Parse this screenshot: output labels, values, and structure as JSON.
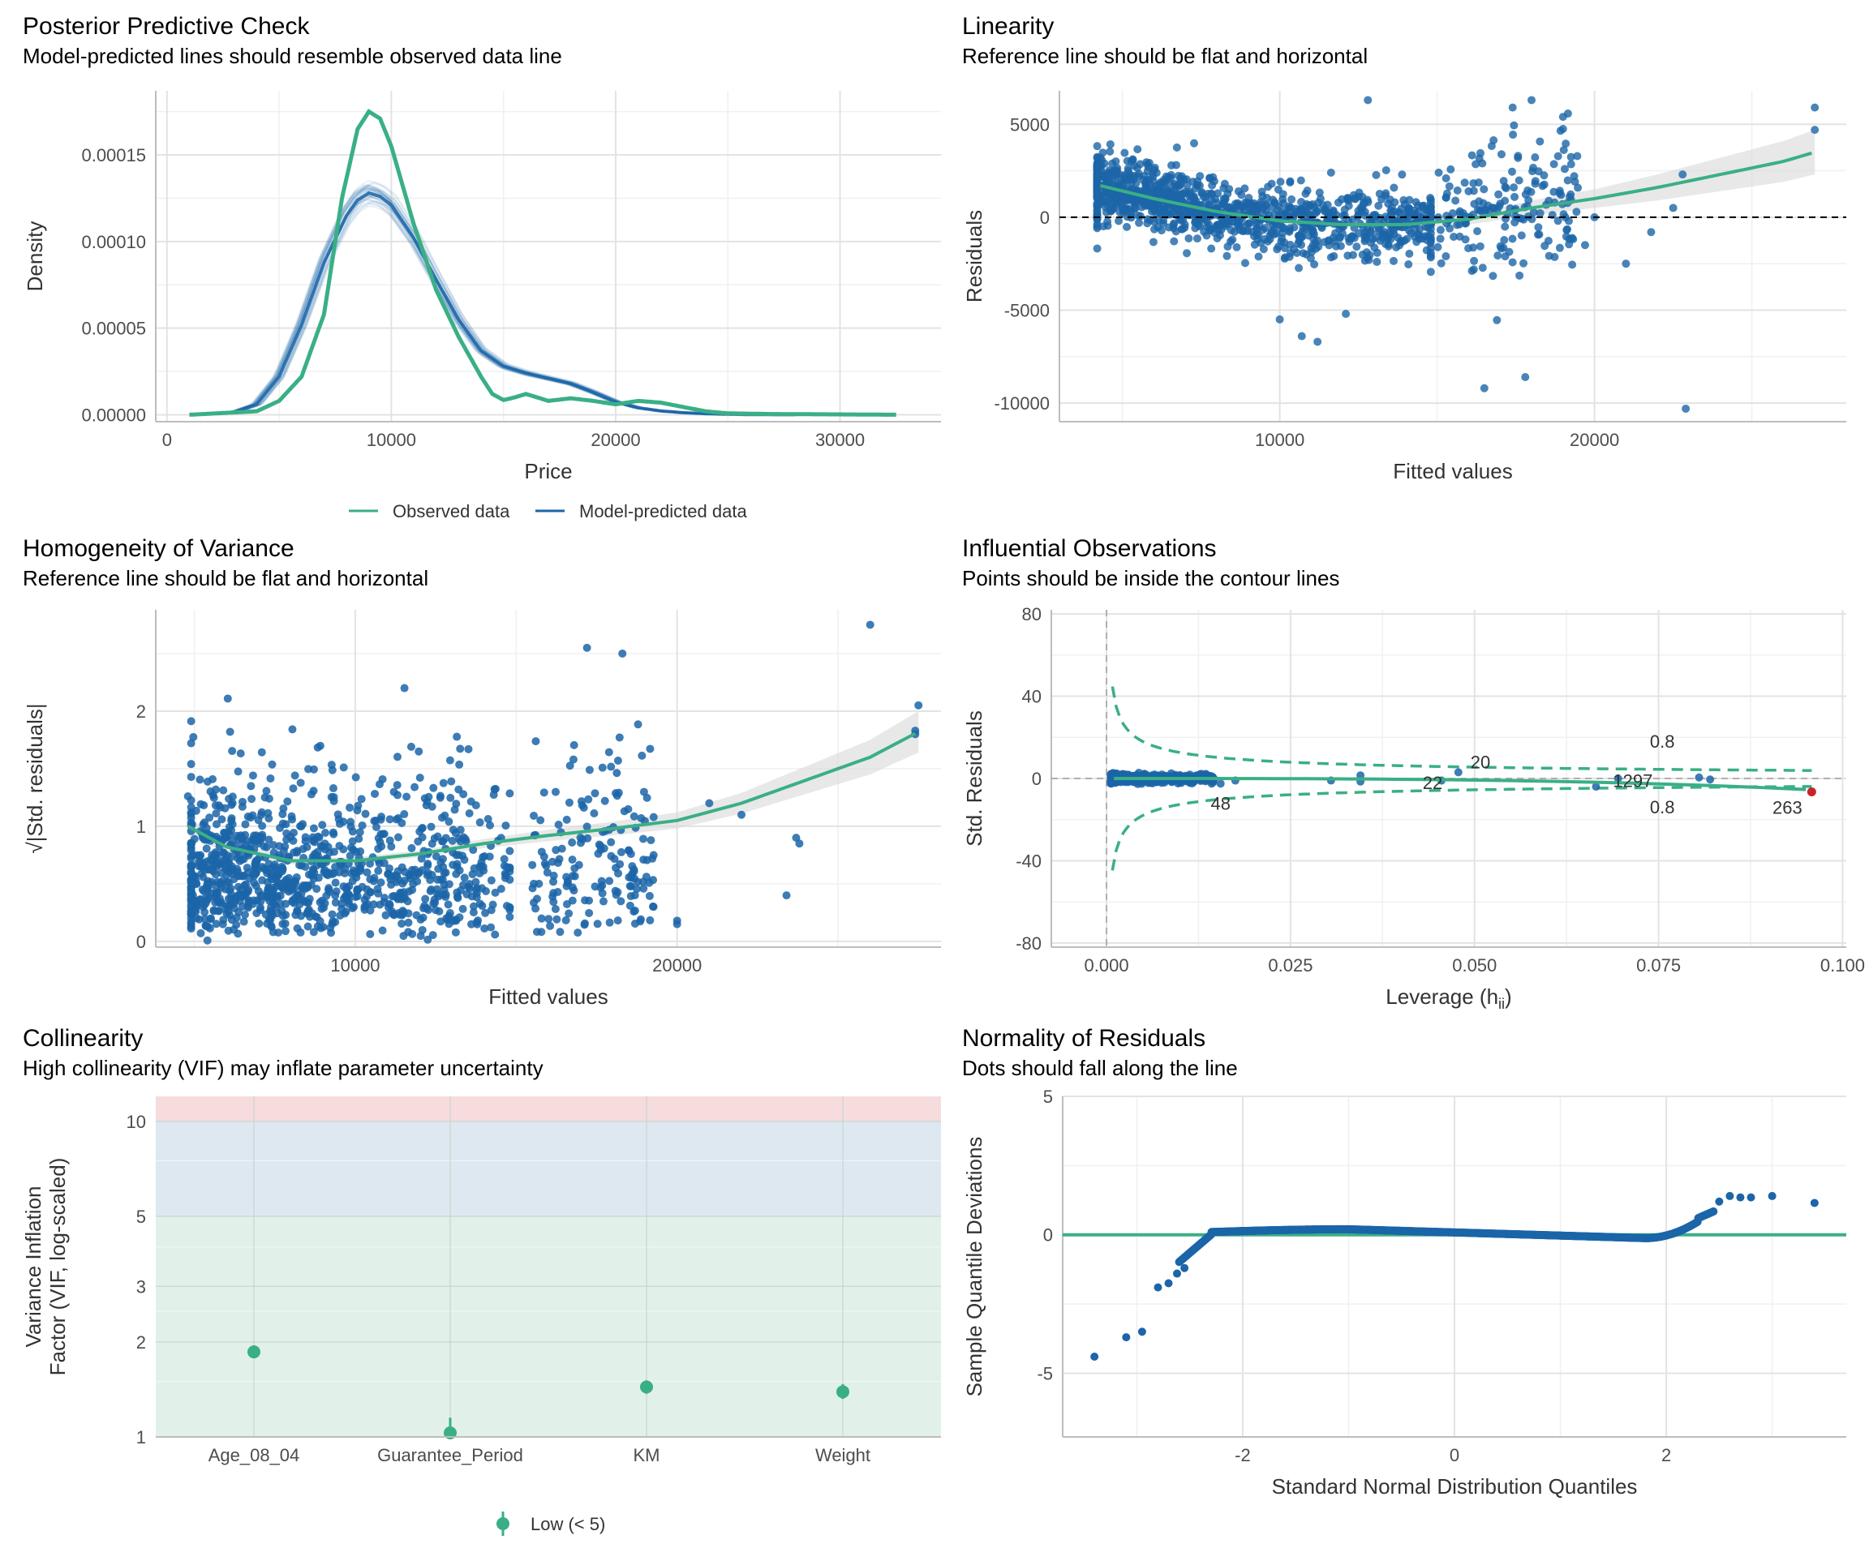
{
  "colors": {
    "blue": "#1b65a8",
    "green": "#3aaf85",
    "grid": "#e3e3e3",
    "red": "#c8242b",
    "band_ci": "#d9d9d9"
  },
  "chart_data": [
    {
      "id": "ppc",
      "type": "line",
      "title": "Posterior Predictive Check",
      "subtitle": "Model-predicted lines should resemble observed data line",
      "xlabel": "Price",
      "ylabel": "Density",
      "xlim": [
        -500,
        34500
      ],
      "ylim": [
        -4e-06,
        0.000187
      ],
      "x_ticks": [
        0,
        10000,
        20000,
        30000
      ],
      "x_tick_labels": [
        "0",
        "10000",
        "20000",
        "30000"
      ],
      "y_ticks": [
        0,
        5e-05,
        0.0001,
        0.00015
      ],
      "y_tick_labels": [
        "0.00000",
        "0.00005",
        "0.00010",
        "0.00015"
      ],
      "legend": {
        "position": "bottom",
        "entries": [
          "Observed data",
          "Model-predicted data"
        ]
      },
      "series": [
        {
          "name": "Observed data",
          "color": "#3aaf85",
          "x": [
            1000,
            4000,
            5000,
            6000,
            7000,
            7800,
            8500,
            9000,
            9500,
            10000,
            11000,
            12000,
            13000,
            14000,
            14500,
            15000,
            15500,
            16000,
            17000,
            18000,
            19000,
            20000,
            21000,
            22000,
            23000,
            24000,
            25000,
            27000,
            30000,
            32500
          ],
          "y": [
            0,
            2e-06,
            8e-06,
            2.2e-05,
            5.8e-05,
            0.000125,
            0.000165,
            0.000175,
            0.000171,
            0.000155,
            0.00011,
            7.2e-05,
            4.5e-05,
            2.2e-05,
            1.2e-05,
            8.5e-06,
            1e-05,
            1.2e-05,
            8e-06,
            9.5e-06,
            8e-06,
            6e-06,
            8e-06,
            7e-06,
            4.5e-06,
            2e-06,
            8e-07,
            4e-07,
            2e-07,
            0
          ]
        },
        {
          "name": "Model-predicted data",
          "color": "#1b65a8",
          "x": [
            1000,
            3000,
            4000,
            5000,
            6000,
            7000,
            8000,
            8500,
            9000,
            9500,
            10000,
            11000,
            12000,
            13000,
            14000,
            15000,
            16000,
            17000,
            18000,
            19000,
            20000,
            21000,
            22000,
            23000,
            24000,
            25000,
            26000,
            28000
          ],
          "y": [
            0,
            1.5e-06,
            6e-06,
            2.2e-05,
            5.2e-05,
            8.8e-05,
            0.000115,
            0.000124,
            0.000128,
            0.000126,
            0.000121,
            0.000102,
            7.8e-05,
            5.5e-05,
            3.7e-05,
            2.8e-05,
            2.4e-05,
            2.1e-05,
            1.8e-05,
            1.3e-05,
            7.5e-06,
            4e-06,
            2.2e-06,
            1.2e-06,
            6e-07,
            3e-07,
            1e-07,
            0
          ]
        }
      ]
    },
    {
      "id": "linearity",
      "type": "scatter",
      "title": "Linearity",
      "subtitle": "Reference line should be flat and horizontal",
      "xlabel": "Fitted values",
      "ylabel": "Residuals",
      "xlim": [
        3000,
        28000
      ],
      "ylim": [
        -11000,
        6800
      ],
      "x_ticks": [
        10000,
        20000
      ],
      "x_tick_labels": [
        "10000",
        "20000"
      ],
      "y_ticks": [
        -10000,
        -5000,
        0,
        5000
      ],
      "y_tick_labels": [
        "-10000",
        "-5000",
        "0",
        "5000"
      ],
      "reference_line": 0,
      "smooth": {
        "x": [
          4300,
          6000,
          8000,
          10000,
          12000,
          14000,
          16000,
          18000,
          20000,
          22000,
          24000,
          26000,
          27000
        ],
        "y": [
          1700,
          1000,
          300,
          -200,
          -400,
          -400,
          -100,
          500,
          1000,
          1600,
          2300,
          3000,
          3500
        ],
        "ci": [
          600,
          400,
          200,
          150,
          150,
          200,
          300,
          400,
          500,
          700,
          900,
          1100,
          1200
        ]
      }
    },
    {
      "id": "homogeneity",
      "type": "scatter",
      "title": "Homogeneity of Variance",
      "subtitle": "Reference line should be flat and horizontal",
      "xlabel": "Fitted values",
      "ylabel": "√|Std. residuals|",
      "xlim": [
        3800,
        28200
      ],
      "ylim": [
        -0.05,
        2.88
      ],
      "x_ticks": [
        10000,
        20000
      ],
      "x_tick_labels": [
        "10000",
        "20000"
      ],
      "y_ticks": [
        0,
        1,
        2
      ],
      "y_tick_labels": [
        "0",
        "1",
        "2"
      ],
      "smooth": {
        "x": [
          4800,
          6000,
          8000,
          10000,
          12000,
          14000,
          16000,
          18000,
          20000,
          22000,
          24000,
          26000,
          27500
        ],
        "y": [
          1.0,
          0.82,
          0.7,
          0.7,
          0.76,
          0.85,
          0.92,
          0.98,
          1.05,
          1.2,
          1.4,
          1.6,
          1.82
        ],
        "ci": [
          0.08,
          0.05,
          0.03,
          0.03,
          0.03,
          0.04,
          0.05,
          0.06,
          0.07,
          0.09,
          0.12,
          0.15,
          0.18
        ]
      }
    },
    {
      "id": "influential",
      "type": "scatter",
      "title": "Influential Observations",
      "subtitle": "Points should be inside the contour lines",
      "xlabel": "Leverage (h",
      "xlabel_sub": "ii",
      "xlabel_end": ")",
      "ylabel": "Std. Residuals",
      "xlim": [
        -0.0075,
        0.1005
      ],
      "ylim": [
        -82,
        82
      ],
      "x_ticks": [
        0,
        0.025,
        0.05,
        0.075,
        0.1
      ],
      "x_tick_labels": [
        "0.000",
        "0.025",
        "0.050",
        "0.075",
        "0.100"
      ],
      "y_ticks": [
        -80,
        -40,
        0,
        40,
        80
      ],
      "y_tick_labels": [
        "-80",
        "-40",
        "0",
        "40",
        "80"
      ],
      "contour_labels": [
        "0.8",
        "0.8"
      ],
      "point_labels": [
        {
          "text": "20",
          "x": 0.0508,
          "y": 8
        },
        {
          "text": "22",
          "x": 0.0443,
          "y": -2
        },
        {
          "text": "48",
          "x": 0.0155,
          "y": -12
        },
        {
          "text": "1297",
          "x": 0.0715,
          "y": -1
        },
        {
          "text": "263",
          "x": 0.0925,
          "y": -14
        }
      ]
    },
    {
      "id": "collinearity",
      "type": "scatter",
      "title": "Collinearity",
      "subtitle": "High collinearity (VIF) may inflate parameter uncertainty",
      "ylabel_lines": [
        "Variance Inflation",
        "Factor (VIF, log-scaled)"
      ],
      "categories": [
        "Age_08_04",
        "Guarantee_Period",
        "KM",
        "Weight"
      ],
      "values": [
        1.86,
        1.03,
        1.44,
        1.39
      ],
      "ci_low": [
        1.78,
        0.98,
        1.37,
        1.32
      ],
      "ci_high": [
        1.95,
        1.15,
        1.51,
        1.47
      ],
      "y_scale": "log",
      "ylim": [
        1,
        12
      ],
      "y_ticks": [
        1,
        2,
        3,
        5,
        10
      ],
      "y_tick_labels": [
        "1",
        "2",
        "3",
        "5",
        "10"
      ],
      "legend": {
        "position": "bottom",
        "entries": [
          "Low (< 5)"
        ]
      }
    },
    {
      "id": "normality",
      "type": "scatter",
      "title": "Normality of Residuals",
      "subtitle": "Dots should fall along the line",
      "xlabel": "Standard Normal Distribution Quantiles",
      "ylabel": "Sample Quantile Deviations",
      "xlim": [
        -3.7,
        3.7
      ],
      "ylim": [
        -7.3,
        5
      ],
      "x_ticks": [
        -2,
        0,
        2
      ],
      "x_tick_labels": [
        "-2",
        "0",
        "2"
      ],
      "y_ticks": [
        -5,
        0,
        5
      ],
      "y_tick_labels": [
        "-5",
        "0",
        "5"
      ],
      "reference_line": 0
    }
  ]
}
